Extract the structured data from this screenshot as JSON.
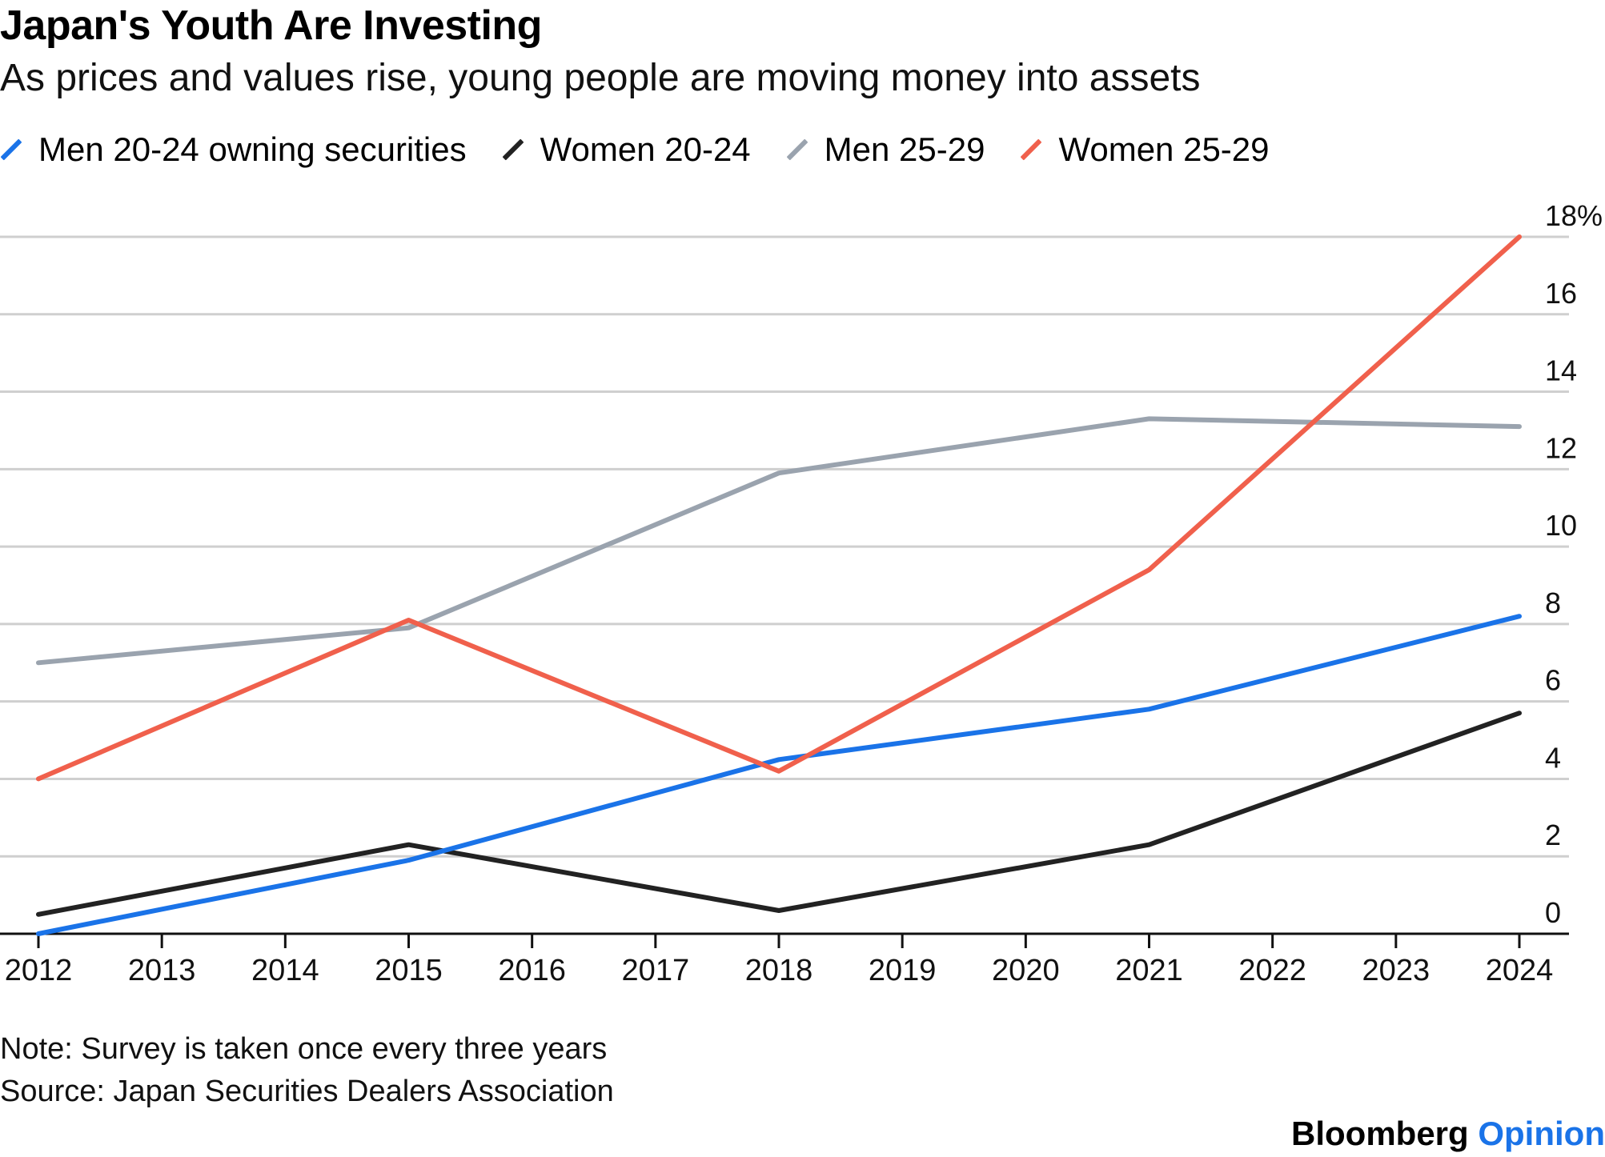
{
  "title": "Japan's Youth Are Investing",
  "subtitle": "As prices and values rise, young people are moving money into assets",
  "note": "Note: Survey is taken once every three years",
  "source": "Source: Japan Securities Dealers Association",
  "brand": {
    "name": "Bloomberg",
    "suffix": "Opinion",
    "accent": "#1a73e8"
  },
  "chart_data": {
    "type": "line",
    "title": "Japan's Youth Are Investing",
    "subtitle": "As prices and values rise, young people are moving money into assets",
    "x_ticks": [
      "2012",
      "2013",
      "2014",
      "2015",
      "2016",
      "2017",
      "2018",
      "2019",
      "2020",
      "2021",
      "2022",
      "2023",
      "2024"
    ],
    "y_ticks": [
      "0",
      "2",
      "4",
      "6",
      "8",
      "10",
      "12",
      "14",
      "16",
      "18%"
    ],
    "y_tick_values": [
      0,
      2,
      4,
      6,
      8,
      10,
      12,
      14,
      16,
      18
    ],
    "xlim": [
      2012,
      2024
    ],
    "ylim": [
      0,
      18
    ],
    "grid": true,
    "legend_position": "top-left",
    "x": [
      2012,
      2015,
      2018,
      2021,
      2024
    ],
    "series": [
      {
        "name": "Men 20-24 owning securities",
        "color": "#1a73e8",
        "values": [
          0.0,
          1.9,
          4.5,
          5.8,
          8.2
        ]
      },
      {
        "name": "Women 20-24",
        "color": "#222222",
        "values": [
          0.5,
          2.3,
          0.6,
          2.3,
          5.7
        ]
      },
      {
        "name": "Men 25-29",
        "color": "#9aa3ae",
        "values": [
          7.0,
          7.9,
          11.9,
          13.3,
          13.1
        ]
      },
      {
        "name": "Women 25-29",
        "color": "#f0604c",
        "values": [
          4.0,
          8.1,
          4.2,
          9.4,
          18.0
        ]
      }
    ]
  }
}
